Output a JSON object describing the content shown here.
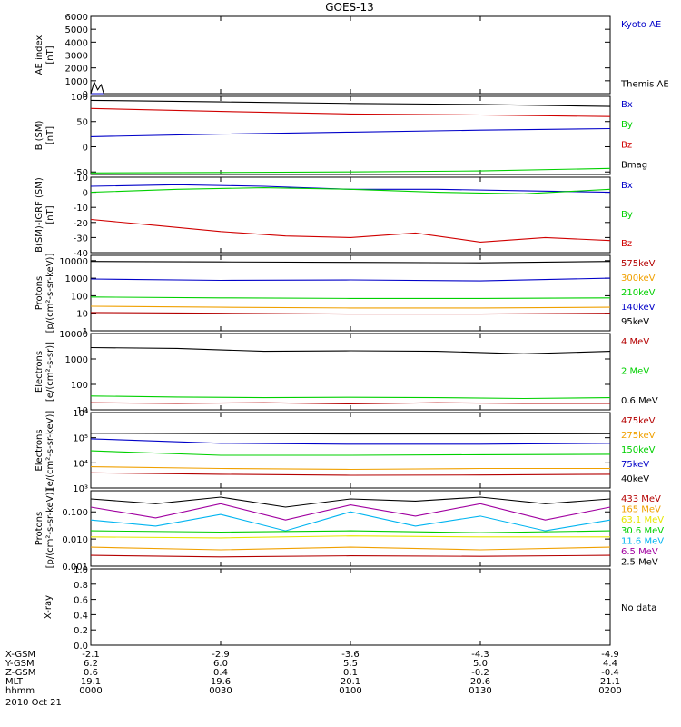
{
  "title": "GOES-13",
  "colors": {
    "black": "#000000",
    "blue": "#0000c8",
    "green": "#00d000",
    "red": "#d00000",
    "orange": "#f0a000",
    "cyan": "#00b4f0",
    "yellow": "#e6e600",
    "purple": "#a000a0",
    "darkred": "#b40000",
    "gray": "#a0a0a0"
  },
  "chart_data": [
    {
      "type": "line",
      "id": "ae",
      "ylabel": [
        "AE index",
        "[nT]"
      ],
      "ylim": [
        0,
        6000
      ],
      "yscale": "linear",
      "ticks": [
        0,
        1000,
        2000,
        3000,
        4000,
        5000,
        6000
      ],
      "tick_labels": [
        "0",
        "1000",
        "2000",
        "3000",
        "4000",
        "5000",
        "6000"
      ],
      "legend": [
        {
          "label": "Kyoto AE",
          "color": "blue"
        },
        {
          "label": "Themis AE",
          "color": "black"
        }
      ],
      "series": [
        {
          "name": "Kyoto AE",
          "color": "blue",
          "x": [
            0,
            120
          ],
          "y": [
            0,
            0
          ]
        },
        {
          "name": "Themis AE",
          "color": "black",
          "x": [
            0,
            0.8,
            1.6,
            2.4,
            3,
            120
          ],
          "y": [
            0,
            900,
            300,
            700,
            0,
            0
          ]
        }
      ]
    },
    {
      "type": "line",
      "id": "bfield",
      "ylabel": [
        "B (SM)",
        "[nT]"
      ],
      "ylim": [
        -55,
        100
      ],
      "yscale": "linear",
      "ticks": [
        -50,
        0,
        50,
        100
      ],
      "tick_labels": [
        "-50",
        "0",
        "50",
        "100"
      ],
      "legend": [
        {
          "label": "Bx",
          "color": "blue"
        },
        {
          "label": "By",
          "color": "green"
        },
        {
          "label": "Bz",
          "color": "red"
        },
        {
          "label": "Bmag",
          "color": "black"
        }
      ],
      "series": [
        {
          "name": "Bmag",
          "color": "black",
          "x": [
            0,
            30,
            60,
            90,
            120
          ],
          "y": [
            92,
            89,
            86,
            84,
            80
          ]
        },
        {
          "name": "Bz",
          "color": "red",
          "x": [
            0,
            30,
            60,
            90,
            120
          ],
          "y": [
            76,
            70,
            65,
            63,
            60
          ]
        },
        {
          "name": "Bx",
          "color": "blue",
          "x": [
            0,
            30,
            60,
            90,
            120
          ],
          "y": [
            20,
            25,
            29,
            33,
            36
          ]
        },
        {
          "name": "By",
          "color": "green",
          "x": [
            0,
            30,
            60,
            90,
            120
          ],
          "y": [
            -52,
            -51,
            -50,
            -48,
            -43
          ]
        }
      ]
    },
    {
      "type": "line",
      "id": "bdiff",
      "ylabel": [
        "B(SM)-IGRF (SM)",
        "[nT]"
      ],
      "ylim": [
        -40,
        10
      ],
      "yscale": "linear",
      "ticks": [
        -40,
        -30,
        -20,
        -10,
        0,
        10
      ],
      "tick_labels": [
        "-40",
        "-30",
        "-20",
        "-10",
        "0",
        "10"
      ],
      "legend": [
        {
          "label": "Bx",
          "color": "blue"
        },
        {
          "label": "By",
          "color": "green"
        },
        {
          "label": "Bz",
          "color": "red"
        }
      ],
      "series": [
        {
          "name": "Bx",
          "color": "blue",
          "x": [
            0,
            20,
            40,
            60,
            80,
            100,
            120
          ],
          "y": [
            4,
            5,
            4,
            2,
            2,
            1,
            0
          ]
        },
        {
          "name": "By",
          "color": "green",
          "x": [
            0,
            20,
            40,
            60,
            80,
            100,
            120
          ],
          "y": [
            0,
            2,
            3,
            2,
            0,
            -1,
            2
          ]
        },
        {
          "name": "Bz",
          "color": "red",
          "x": [
            0,
            15,
            30,
            45,
            60,
            75,
            90,
            105,
            120
          ],
          "y": [
            -18,
            -22,
            -26,
            -29,
            -30,
            -27,
            -33,
            -30,
            -32
          ]
        }
      ]
    },
    {
      "type": "line",
      "id": "protons_low",
      "ylabel": [
        "Protons",
        "[p/(cm²-s-sr-keV)]"
      ],
      "ylim": [
        1,
        20000
      ],
      "yscale": "log",
      "ticks": [
        1,
        10,
        100,
        1000,
        10000
      ],
      "tick_labels": [
        "1",
        "10",
        "100",
        "1000",
        "10000"
      ],
      "legend": [
        {
          "label": "575keV",
          "color": "darkred"
        },
        {
          "label": "300keV",
          "color": "orange"
        },
        {
          "label": "210keV",
          "color": "green"
        },
        {
          "label": "140keV",
          "color": "blue"
        },
        {
          "label": "95keV",
          "color": "black"
        }
      ],
      "series": [
        {
          "name": "95keV",
          "color": "black",
          "x": [
            0,
            30,
            60,
            90,
            120
          ],
          "y": [
            9000,
            8500,
            8000,
            7500,
            9000
          ]
        },
        {
          "name": "140keV",
          "color": "blue",
          "x": [
            0,
            30,
            60,
            90,
            120
          ],
          "y": [
            900,
            750,
            800,
            700,
            1000
          ]
        },
        {
          "name": "210keV",
          "color": "green",
          "x": [
            0,
            30,
            60,
            90,
            120
          ],
          "y": [
            85,
            75,
            70,
            70,
            75
          ]
        },
        {
          "name": "300keV",
          "color": "orange",
          "x": [
            0,
            30,
            60,
            90,
            120
          ],
          "y": [
            25,
            22,
            20,
            20,
            22
          ]
        },
        {
          "name": "575keV",
          "color": "darkred",
          "x": [
            0,
            30,
            60,
            90,
            120
          ],
          "y": [
            11,
            10,
            9,
            9,
            10
          ]
        }
      ]
    },
    {
      "type": "line",
      "id": "electrons_mev",
      "ylabel": [
        "Electrons",
        "[e/(cm²-s-sr)]"
      ],
      "ylim": [
        10,
        10000
      ],
      "yscale": "log",
      "ticks": [
        10,
        100,
        1000,
        10000
      ],
      "tick_labels": [
        "10",
        "100",
        "1000",
        "10000"
      ],
      "legend": [
        {
          "label": "4 MeV",
          "color": "darkred"
        },
        {
          "label": "2 MeV",
          "color": "green"
        },
        {
          "label": "0.6 MeV",
          "color": "black"
        }
      ],
      "series": [
        {
          "name": "0.6 MeV",
          "color": "black",
          "x": [
            0,
            20,
            40,
            60,
            80,
            100,
            120
          ],
          "y": [
            2800,
            2600,
            2000,
            2100,
            2000,
            1600,
            2000
          ]
        },
        {
          "name": "2 MeV",
          "color": "green",
          "x": [
            0,
            20,
            40,
            60,
            80,
            100,
            120
          ],
          "y": [
            35,
            32,
            30,
            31,
            30,
            28,
            30
          ]
        },
        {
          "name": "4 MeV",
          "color": "darkred",
          "x": [
            0,
            20,
            40,
            60,
            80,
            100,
            120
          ],
          "y": [
            19,
            18,
            19,
            17,
            19,
            18,
            18
          ]
        }
      ]
    },
    {
      "type": "line",
      "id": "electrons_kev",
      "ylabel": [
        "Electrons",
        "[e/(cm²-s-sr-keV)]"
      ],
      "ylim": [
        1000,
        1000000
      ],
      "yscale": "log",
      "ticks": [
        1000,
        10000,
        100000,
        1000000
      ],
      "tick_labels": [
        "10³",
        "10⁴",
        "10⁵",
        "10⁶"
      ],
      "legend": [
        {
          "label": "475keV",
          "color": "darkred"
        },
        {
          "label": "275keV",
          "color": "orange"
        },
        {
          "label": "150keV",
          "color": "green"
        },
        {
          "label": "75keV",
          "color": "blue"
        },
        {
          "label": "40keV",
          "color": "black"
        }
      ],
      "series": [
        {
          "name": "40keV",
          "color": "black",
          "x": [
            0,
            30,
            60,
            90,
            120
          ],
          "y": [
            150000,
            145000,
            140000,
            140000,
            145000
          ]
        },
        {
          "name": "75keV",
          "color": "blue",
          "x": [
            0,
            30,
            60,
            90,
            120
          ],
          "y": [
            90000,
            60000,
            55000,
            55000,
            60000
          ]
        },
        {
          "name": "150keV",
          "color": "green",
          "x": [
            0,
            30,
            60,
            90,
            120
          ],
          "y": [
            30000,
            20000,
            20000,
            21000,
            22000
          ]
        },
        {
          "name": "275keV",
          "color": "orange",
          "x": [
            0,
            30,
            60,
            90,
            120
          ],
          "y": [
            7000,
            6000,
            5500,
            6000,
            6000
          ]
        },
        {
          "name": "475keV",
          "color": "darkred",
          "x": [
            0,
            30,
            60,
            90,
            120
          ],
          "y": [
            4000,
            3500,
            3200,
            3300,
            3500
          ]
        }
      ]
    },
    {
      "type": "line",
      "id": "protons_high",
      "ylabel": [
        "Protons",
        "[p/(cm²-s-sr-keV)]"
      ],
      "ylim": [
        0.001,
        0.6
      ],
      "yscale": "log",
      "ticks": [
        0.001,
        0.01,
        0.1
      ],
      "tick_labels": [
        "0.001",
        "0.010",
        "0.100"
      ],
      "legend": [
        {
          "label": "433 MeV",
          "color": "darkred"
        },
        {
          "label": "165 MeV",
          "color": "orange"
        },
        {
          "label": "63.1 MeV",
          "color": "yellow"
        },
        {
          "label": "30.6 MeV",
          "color": "green"
        },
        {
          "label": "11.6 MeV",
          "color": "cyan"
        },
        {
          "label": "6.5 MeV",
          "color": "purple"
        },
        {
          "label": "2.5 MeV",
          "color": "black"
        }
      ],
      "series": [
        {
          "name": "2.5 MeV",
          "color": "black",
          "x": [
            0,
            15,
            30,
            45,
            60,
            75,
            90,
            105,
            120
          ],
          "y": [
            0.3,
            0.2,
            0.35,
            0.15,
            0.3,
            0.25,
            0.35,
            0.2,
            0.3
          ]
        },
        {
          "name": "6.5 MeV",
          "color": "purple",
          "x": [
            0,
            15,
            30,
            45,
            60,
            75,
            90,
            105,
            120
          ],
          "y": [
            0.15,
            0.06,
            0.2,
            0.05,
            0.18,
            0.07,
            0.2,
            0.05,
            0.15
          ]
        },
        {
          "name": "11.6 MeV",
          "color": "cyan",
          "x": [
            0,
            15,
            30,
            45,
            60,
            75,
            90,
            105,
            120
          ],
          "y": [
            0.05,
            0.03,
            0.08,
            0.02,
            0.1,
            0.03,
            0.07,
            0.02,
            0.05
          ]
        },
        {
          "name": "30.6 MeV",
          "color": "green",
          "x": [
            0,
            30,
            60,
            90,
            120
          ],
          "y": [
            0.02,
            0.018,
            0.02,
            0.017,
            0.02
          ]
        },
        {
          "name": "63.1 MeV",
          "color": "yellow",
          "x": [
            0,
            30,
            60,
            90,
            120
          ],
          "y": [
            0.012,
            0.011,
            0.013,
            0.012,
            0.012
          ]
        },
        {
          "name": "165 MeV",
          "color": "orange",
          "x": [
            0,
            30,
            60,
            90,
            120
          ],
          "y": [
            0.005,
            0.004,
            0.005,
            0.004,
            0.005
          ]
        },
        {
          "name": "433 MeV",
          "color": "darkred",
          "x": [
            0,
            30,
            60,
            90,
            120
          ],
          "y": [
            0.0025,
            0.0022,
            0.0024,
            0.0023,
            0.0025
          ]
        }
      ]
    },
    {
      "type": "line",
      "id": "xray",
      "ylabel": [
        "X-ray"
      ],
      "ylim": [
        0,
        1
      ],
      "yscale": "linear",
      "ticks": [
        0,
        0.2,
        0.4,
        0.6,
        0.8,
        1.0
      ],
      "tick_labels": [
        "0.0",
        "0.2",
        "0.4",
        "0.6",
        "0.8",
        "1.0"
      ],
      "legend": [
        {
          "label": "No data",
          "color": "black"
        }
      ],
      "series": []
    }
  ],
  "xaxis": {
    "xlim": [
      0,
      120
    ],
    "ticks": [
      0,
      30,
      60,
      90,
      120
    ],
    "rows": [
      {
        "label": "X-GSM",
        "values": [
          "-2.1",
          "-2.9",
          "-3.6",
          "-4.3",
          "-4.9"
        ]
      },
      {
        "label": "Y-GSM",
        "values": [
          "6.2",
          "6.0",
          "5.5",
          "5.0",
          "4.4"
        ]
      },
      {
        "label": "Z-GSM",
        "values": [
          "0.6",
          "0.4",
          "0.1",
          "-0.2",
          "-0.4"
        ]
      },
      {
        "label": "MLT",
        "values": [
          "19.1",
          "19.6",
          "20.1",
          "20.6",
          "21.1"
        ]
      },
      {
        "label": "hhmm",
        "values": [
          "0000",
          "0030",
          "0100",
          "0130",
          "0200"
        ]
      }
    ],
    "date": "2010 Oct 21"
  }
}
